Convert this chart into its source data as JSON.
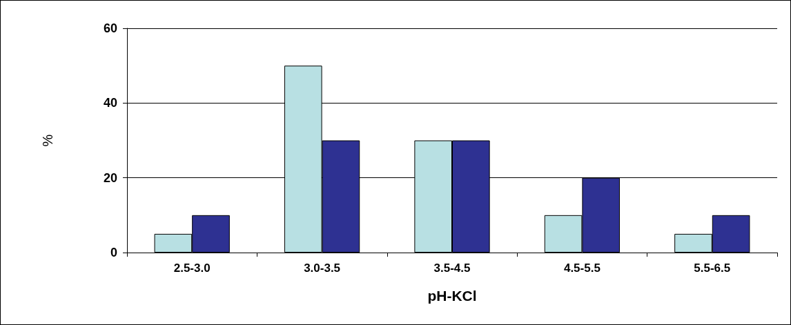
{
  "chart_data": {
    "type": "bar",
    "xlabel": "pH-KCl",
    "ylabel": "%",
    "categories": [
      "2.5-3.0",
      "3.0-3.5",
      "3.5-4.5",
      "4.5-5.5",
      "5.5-6.5"
    ],
    "series": [
      {
        "color": "#b8e0e3",
        "values": [
          5,
          50,
          30,
          10,
          5
        ]
      },
      {
        "color": "#2e3192",
        "values": [
          10,
          30,
          30,
          20,
          10
        ]
      }
    ],
    "ylim": [
      0,
      60
    ],
    "yticks": [
      0,
      20,
      40,
      60
    ],
    "grid": "y"
  }
}
